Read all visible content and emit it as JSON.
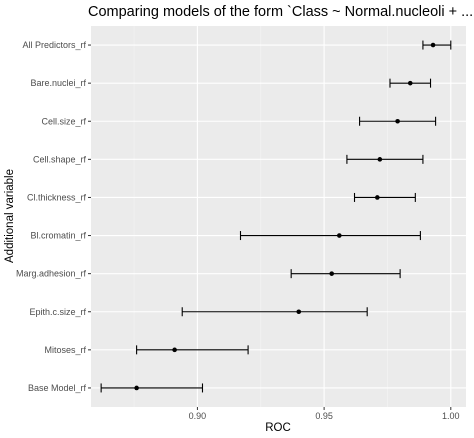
{
  "chart_data": {
    "type": "scatter",
    "title": "Comparing models of the form `Class ~ Normal.nucleoli + ...`",
    "xlabel": "ROC",
    "ylabel": "Additional variable",
    "xlim": [
      0.858,
      1.006
    ],
    "x_ticks": [
      "0.90",
      "0.95",
      "1.00"
    ],
    "x_tick_values": [
      0.9,
      0.95,
      1.0
    ],
    "grid": true,
    "legend": "none",
    "categories": [
      "All Predictors_rf",
      "Bare.nuclei_rf",
      "Cell.size_rf",
      "Cell.shape_rf",
      "Cl.thickness_rf",
      "Bl.cromatin_rf",
      "Marg.adhesion_rf",
      "Epith.c.size_rf",
      "Mitoses_rf",
      "Base Model_rf"
    ],
    "values": [
      0.993,
      0.984,
      0.979,
      0.972,
      0.971,
      0.956,
      0.953,
      0.94,
      0.891,
      0.876
    ],
    "lower": [
      0.989,
      0.976,
      0.964,
      0.959,
      0.962,
      0.917,
      0.937,
      0.894,
      0.876,
      0.862
    ],
    "upper": [
      1.0,
      0.992,
      0.994,
      0.989,
      0.986,
      0.988,
      0.98,
      0.967,
      0.92,
      0.902
    ],
    "colors": {
      "panel": "#ebebeb",
      "grid_major": "#ffffff",
      "grid_minor": "#f5f5f5",
      "mark": "#000000",
      "tick_text": "#4d4d4d",
      "tick_mark": "#333333"
    }
  }
}
